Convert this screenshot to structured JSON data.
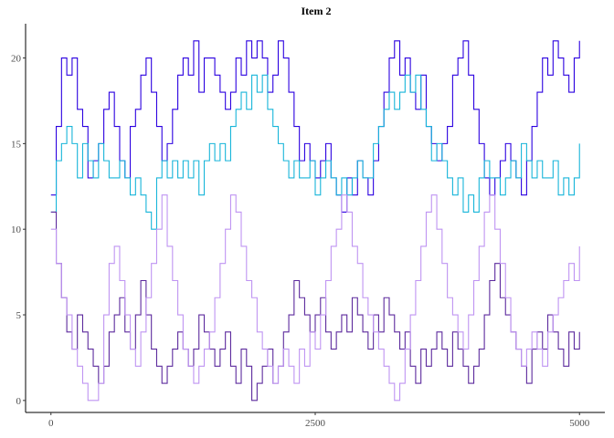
{
  "chart_data": {
    "type": "line",
    "title": "Item 2",
    "xlabel": "",
    "ylabel": "",
    "xlim": [
      -240,
      5240
    ],
    "ylim": [
      -0.7,
      22
    ],
    "x_ticks": [
      0,
      2500,
      5000
    ],
    "x_tick_labels": [
      "0",
      "2500",
      "5000"
    ],
    "y_ticks": [
      0,
      5,
      10,
      15,
      20
    ],
    "y_tick_labels": [
      "0",
      "5",
      "10",
      "15",
      "20"
    ],
    "grid": false,
    "legend": "none",
    "series": [
      {
        "color": "#2b00e0",
        "x": [
          0,
          50,
          100,
          150,
          200,
          250,
          300,
          350,
          400,
          450,
          500,
          550,
          600,
          650,
          700,
          750,
          800,
          850,
          900,
          950,
          1000,
          1050,
          1100,
          1150,
          1200,
          1250,
          1300,
          1350,
          1400,
          1450,
          1500,
          1550,
          1600,
          1650,
          1700,
          1750,
          1800,
          1850,
          1900,
          1950,
          2000,
          2050,
          2100,
          2150,
          2200,
          2250,
          2300,
          2350,
          2400,
          2450,
          2500,
          2550,
          2600,
          2650,
          2700,
          2750,
          2800,
          2850,
          2900,
          2950,
          3000,
          3050,
          3100,
          3150,
          3200,
          3250,
          3300,
          3350,
          3400,
          3450,
          3500,
          3550,
          3600,
          3650,
          3700,
          3750,
          3800,
          3850,
          3900,
          3950,
          4000,
          4050,
          4100,
          4150,
          4200,
          4250,
          4300,
          4350,
          4400,
          4450,
          4500,
          4550,
          4600,
          4650,
          4700,
          4750,
          4800,
          4850,
          4900,
          4950,
          5000
        ],
        "y": [
          12,
          16,
          20,
          19,
          20,
          17,
          16,
          13,
          14,
          15,
          17,
          18,
          16,
          14,
          13,
          16,
          17,
          19,
          20,
          18,
          16,
          14,
          15,
          17,
          19,
          20,
          19,
          21,
          18,
          20,
          20,
          19,
          18,
          17,
          18,
          20,
          19,
          21,
          20,
          21,
          20,
          18,
          19,
          21,
          20,
          18,
          16,
          14,
          15,
          14,
          13,
          14,
          15,
          13,
          12,
          11,
          13,
          12,
          14,
          13,
          12,
          14,
          16,
          18,
          20,
          21,
          19,
          20,
          18,
          17,
          19,
          16,
          15,
          14,
          15,
          16,
          19,
          20,
          21,
          19,
          17,
          15,
          13,
          12,
          13,
          14,
          15,
          14,
          13,
          12,
          14,
          16,
          18,
          20,
          19,
          21,
          20,
          19,
          18,
          20,
          21
        ]
      },
      {
        "color": "#17b5d9",
        "x": [
          0,
          50,
          100,
          150,
          200,
          250,
          300,
          350,
          400,
          450,
          500,
          550,
          600,
          650,
          700,
          750,
          800,
          850,
          900,
          950,
          1000,
          1050,
          1100,
          1150,
          1200,
          1250,
          1300,
          1350,
          1400,
          1450,
          1500,
          1550,
          1600,
          1650,
          1700,
          1750,
          1800,
          1850,
          1900,
          1950,
          2000,
          2050,
          2100,
          2150,
          2200,
          2250,
          2300,
          2350,
          2400,
          2450,
          2500,
          2550,
          2600,
          2650,
          2700,
          2750,
          2800,
          2850,
          2900,
          2950,
          3000,
          3050,
          3100,
          3150,
          3200,
          3250,
          3300,
          3350,
          3400,
          3450,
          3500,
          3550,
          3600,
          3650,
          3700,
          3750,
          3800,
          3850,
          3900,
          3950,
          4000,
          4050,
          4100,
          4150,
          4200,
          4250,
          4300,
          4350,
          4400,
          4450,
          4500,
          4550,
          4600,
          4650,
          4700,
          4750,
          4800,
          4850,
          4900,
          4950,
          5000
        ],
        "y": [
          11,
          14,
          15,
          16,
          15,
          13,
          15,
          14,
          13,
          15,
          14,
          13,
          13,
          14,
          13,
          12,
          13,
          12,
          11,
          10,
          13,
          14,
          13,
          14,
          13,
          14,
          13,
          14,
          12,
          14,
          15,
          14,
          15,
          14,
          16,
          17,
          18,
          17,
          19,
          18,
          19,
          17,
          16,
          15,
          14,
          13,
          14,
          13,
          13,
          14,
          12,
          13,
          14,
          13,
          12,
          13,
          12,
          13,
          14,
          13,
          13,
          15,
          16,
          17,
          18,
          17,
          18,
          19,
          18,
          19,
          17,
          16,
          14,
          15,
          14,
          13,
          12,
          13,
          11,
          12,
          11,
          13,
          14,
          13,
          13,
          12,
          13,
          14,
          13,
          15,
          14,
          13,
          14,
          13,
          13,
          14,
          12,
          13,
          12,
          13,
          15
        ]
      },
      {
        "color": "#5c2a9d",
        "x": [
          0,
          50,
          100,
          150,
          200,
          250,
          300,
          350,
          400,
          450,
          500,
          550,
          600,
          650,
          700,
          750,
          800,
          850,
          900,
          950,
          1000,
          1050,
          1100,
          1150,
          1200,
          1250,
          1300,
          1350,
          1400,
          1450,
          1500,
          1550,
          1600,
          1650,
          1700,
          1750,
          1800,
          1850,
          1900,
          1950,
          2000,
          2050,
          2100,
          2150,
          2200,
          2250,
          2300,
          2350,
          2400,
          2450,
          2500,
          2550,
          2600,
          2650,
          2700,
          2750,
          2800,
          2850,
          2900,
          2950,
          3000,
          3050,
          3100,
          3150,
          3200,
          3250,
          3300,
          3350,
          3400,
          3450,
          3500,
          3550,
          3600,
          3650,
          3700,
          3750,
          3800,
          3850,
          3900,
          3950,
          4000,
          4050,
          4100,
          4150,
          4200,
          4250,
          4300,
          4350,
          4400,
          4450,
          4500,
          4550,
          4600,
          4650,
          4700,
          4750,
          4800,
          4850,
          4900,
          4950,
          5000
        ],
        "y": [
          11,
          8,
          6,
          4,
          3,
          5,
          4,
          3,
          2,
          1,
          2,
          4,
          5,
          6,
          4,
          3,
          5,
          7,
          5,
          3,
          2,
          1,
          2,
          3,
          4,
          3,
          2,
          3,
          5,
          4,
          3,
          2,
          3,
          4,
          2,
          1,
          3,
          2,
          0,
          1,
          2,
          3,
          1,
          2,
          4,
          5,
          7,
          6,
          5,
          4,
          5,
          6,
          4,
          3,
          4,
          5,
          4,
          6,
          5,
          4,
          3,
          5,
          4,
          6,
          5,
          4,
          3,
          4,
          2,
          1,
          3,
          2,
          3,
          4,
          3,
          2,
          4,
          3,
          2,
          1,
          2,
          3,
          5,
          7,
          8,
          6,
          5,
          4,
          3,
          2,
          1,
          3,
          4,
          3,
          5,
          4,
          3,
          2,
          4,
          3,
          4
        ]
      },
      {
        "color": "#bf94f2",
        "x": [
          0,
          50,
          100,
          150,
          200,
          250,
          300,
          350,
          400,
          450,
          500,
          550,
          600,
          650,
          700,
          750,
          800,
          850,
          900,
          950,
          1000,
          1050,
          1100,
          1150,
          1200,
          1250,
          1300,
          1350,
          1400,
          1450,
          1500,
          1550,
          1600,
          1650,
          1700,
          1750,
          1800,
          1850,
          1900,
          1950,
          2000,
          2050,
          2100,
          2150,
          2200,
          2250,
          2300,
          2350,
          2400,
          2450,
          2500,
          2550,
          2600,
          2650,
          2700,
          2750,
          2800,
          2850,
          2900,
          2950,
          3000,
          3050,
          3100,
          3150,
          3200,
          3250,
          3300,
          3350,
          3400,
          3450,
          3500,
          3550,
          3600,
          3650,
          3700,
          3750,
          3800,
          3850,
          3900,
          3950,
          4000,
          4050,
          4100,
          4150,
          4200,
          4250,
          4300,
          4350,
          4400,
          4450,
          4500,
          4550,
          4600,
          4650,
          4700,
          4750,
          4800,
          4850,
          4900,
          4950,
          5000
        ],
        "y": [
          10,
          8,
          6,
          5,
          3,
          2,
          1,
          0,
          0,
          1,
          5,
          8,
          9,
          7,
          5,
          3,
          2,
          4,
          6,
          8,
          10,
          12,
          9,
          7,
          5,
          3,
          2,
          1,
          2,
          3,
          4,
          6,
          8,
          10,
          12,
          11,
          9,
          7,
          6,
          4,
          3,
          2,
          1,
          2,
          3,
          2,
          1,
          3,
          2,
          4,
          3,
          5,
          7,
          9,
          10,
          12,
          11,
          9,
          8,
          6,
          5,
          4,
          3,
          2,
          1,
          0,
          1,
          3,
          5,
          7,
          9,
          11,
          12,
          10,
          8,
          6,
          5,
          4,
          3,
          5,
          7,
          9,
          11,
          12,
          10,
          8,
          6,
          4,
          3,
          2,
          3,
          4,
          3,
          2,
          4,
          5,
          6,
          7,
          8,
          7,
          9
        ]
      }
    ]
  }
}
